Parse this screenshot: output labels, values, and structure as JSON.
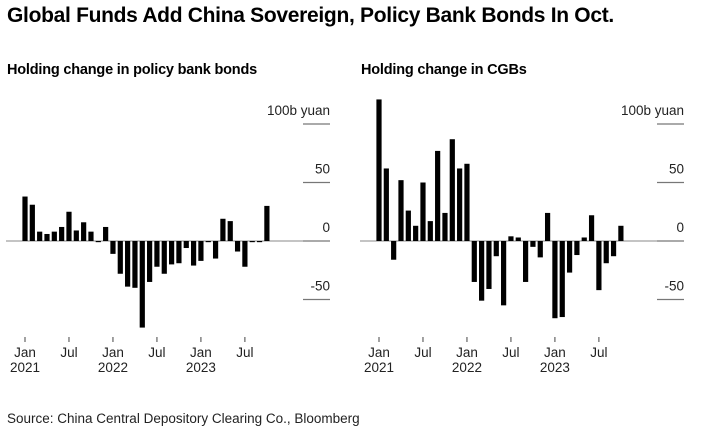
{
  "title": "Global Funds Add China Sovereign, Policy Bank Bonds In Oct.",
  "source": "Source: China Central Depository Clearing Co., Bloomberg",
  "chart_data": [
    {
      "type": "bar",
      "title": "Holding change in policy bank bonds",
      "unit_label": "100b yuan",
      "xlabel": "",
      "ylabel": "100b yuan",
      "ylim": [
        -75,
        100
      ],
      "yticks": [
        -50,
        0,
        50,
        100
      ],
      "ytick_labels": [
        "-50",
        "0",
        "50",
        "100b yuan"
      ],
      "grid": true,
      "xtick_labels": [
        {
          "index": 0,
          "line1": "Jan",
          "line2": "2021"
        },
        {
          "index": 6,
          "line1": "Jul",
          "line2": ""
        },
        {
          "index": 12,
          "line1": "Jan",
          "line2": "2022"
        },
        {
          "index": 18,
          "line1": "Jul",
          "line2": ""
        },
        {
          "index": 24,
          "line1": "Jan",
          "line2": "2023"
        },
        {
          "index": 30,
          "line1": "Jul",
          "line2": ""
        }
      ],
      "categories": [
        "2021-01",
        "2021-02",
        "2021-03",
        "2021-04",
        "2021-05",
        "2021-06",
        "2021-07",
        "2021-08",
        "2021-09",
        "2021-10",
        "2021-11",
        "2021-12",
        "2022-01",
        "2022-02",
        "2022-03",
        "2022-04",
        "2022-05",
        "2022-06",
        "2022-07",
        "2022-08",
        "2022-09",
        "2022-10",
        "2022-11",
        "2022-12",
        "2023-01",
        "2023-02",
        "2023-03",
        "2023-04",
        "2023-05",
        "2023-06",
        "2023-07",
        "2023-08",
        "2023-09",
        "2023-10"
      ],
      "values": [
        38,
        31,
        8,
        6,
        8,
        12,
        25,
        9,
        16,
        8,
        -1,
        12,
        -11,
        -28,
        -39,
        -40,
        -74,
        -35,
        -22,
        -28,
        -20,
        -19,
        -6,
        -21,
        -17,
        -1,
        -15,
        19,
        17,
        -9,
        -22,
        -1,
        -1,
        30
      ]
    },
    {
      "type": "bar",
      "title": "Holding change in CGBs",
      "unit_label": "100b yuan",
      "xlabel": "",
      "ylabel": "100b yuan",
      "ylim": [
        -75,
        100
      ],
      "yticks": [
        -50,
        0,
        50,
        100
      ],
      "ytick_labels": [
        "-50",
        "0",
        "50",
        "100b yuan"
      ],
      "grid": true,
      "xtick_labels": [
        {
          "index": 0,
          "line1": "Jan",
          "line2": "2021"
        },
        {
          "index": 6,
          "line1": "Jul",
          "line2": ""
        },
        {
          "index": 12,
          "line1": "Jan",
          "line2": "2022"
        },
        {
          "index": 18,
          "line1": "Jul",
          "line2": ""
        },
        {
          "index": 24,
          "line1": "Jan",
          "line2": "2023"
        },
        {
          "index": 30,
          "line1": "Jul",
          "line2": ""
        }
      ],
      "categories": [
        "2021-01",
        "2021-02",
        "2021-03",
        "2021-04",
        "2021-05",
        "2021-06",
        "2021-07",
        "2021-08",
        "2021-09",
        "2021-10",
        "2021-11",
        "2021-12",
        "2022-01",
        "2022-02",
        "2022-03",
        "2022-04",
        "2022-05",
        "2022-06",
        "2022-07",
        "2022-08",
        "2022-09",
        "2022-10",
        "2022-11",
        "2022-12",
        "2023-01",
        "2023-02",
        "2023-03",
        "2023-04",
        "2023-05",
        "2023-06",
        "2023-07",
        "2023-08",
        "2023-09",
        "2023-10"
      ],
      "values": [
        121,
        62,
        -16,
        52,
        26,
        13,
        50,
        17,
        77,
        24,
        87,
        62,
        66,
        -35,
        -51,
        -41,
        -13,
        -55,
        4,
        3,
        -35,
        -5,
        -14,
        24,
        -66,
        -65,
        -27,
        -12,
        3,
        22,
        -42,
        -19,
        -13,
        13
      ]
    }
  ]
}
